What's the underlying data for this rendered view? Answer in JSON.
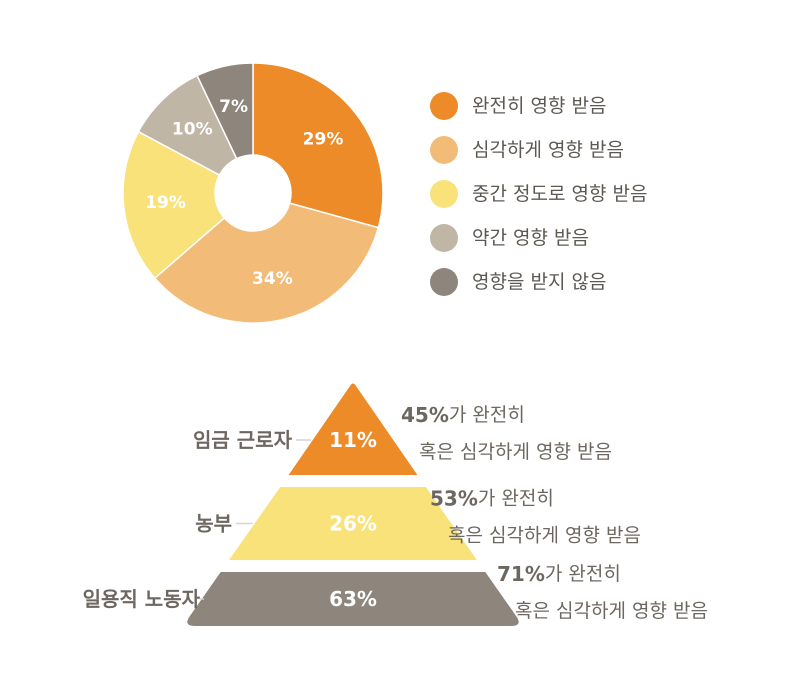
{
  "chart_data": [
    {
      "type": "pie",
      "donut": true,
      "categories": [
        "완전히 영향 받음",
        "심각하게 영향 받음",
        "중간 정도로 영향 받음",
        "약간 영향 받음",
        "영향을 받지 않음"
      ],
      "values": [
        29,
        34,
        19,
        10,
        7
      ],
      "labels": [
        "29%",
        "34%",
        "19%",
        "10%",
        "7%"
      ],
      "colors": [
        "#EC8B27",
        "#F3BB78",
        "#F9E27A",
        "#BFB6A5",
        "#8E857C"
      ],
      "legend_position": "right"
    },
    {
      "type": "bar",
      "shape": "pyramid",
      "categories": [
        "임금 근로자",
        "농부",
        "일용직 노동자"
      ],
      "values": [
        11,
        26,
        63
      ],
      "labels": [
        "11%",
        "26%",
        "63%"
      ],
      "colors": [
        "#EC8B27",
        "#F9E27A",
        "#8E857C"
      ],
      "annotations": [
        {
          "value": "45%",
          "line1": "가 완전히",
          "line2": "혹은 심각하게 영향 받음"
        },
        {
          "value": "53%",
          "line1": "가 완전히",
          "line2": "혹은 심각하게 영향 받음"
        },
        {
          "value": "71%",
          "line1": "가 완전히",
          "line2": "혹은 심각하게 영향 받음"
        }
      ]
    }
  ]
}
